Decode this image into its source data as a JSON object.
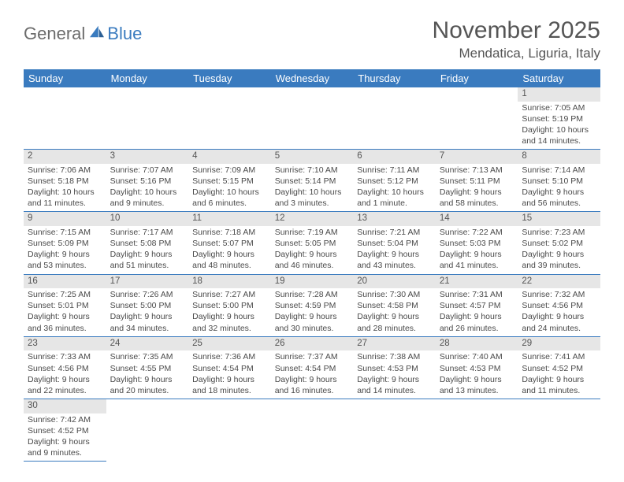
{
  "logo": {
    "part1": "General",
    "part2": "Blue"
  },
  "title": "November 2025",
  "location": "Mendatica, Liguria, Italy",
  "colors": {
    "header_bg": "#3a7bbf",
    "header_fg": "#ffffff",
    "daynum_bg": "#e6e6e6",
    "border": "#3a7bbf",
    "text": "#4a4a4a"
  },
  "weekdays": [
    "Sunday",
    "Monday",
    "Tuesday",
    "Wednesday",
    "Thursday",
    "Friday",
    "Saturday"
  ],
  "weeks": [
    [
      null,
      null,
      null,
      null,
      null,
      null,
      {
        "n": "1",
        "sr": "Sunrise: 7:05 AM",
        "ss": "Sunset: 5:19 PM",
        "dl": "Daylight: 10 hours and 14 minutes."
      }
    ],
    [
      {
        "n": "2",
        "sr": "Sunrise: 7:06 AM",
        "ss": "Sunset: 5:18 PM",
        "dl": "Daylight: 10 hours and 11 minutes."
      },
      {
        "n": "3",
        "sr": "Sunrise: 7:07 AM",
        "ss": "Sunset: 5:16 PM",
        "dl": "Daylight: 10 hours and 9 minutes."
      },
      {
        "n": "4",
        "sr": "Sunrise: 7:09 AM",
        "ss": "Sunset: 5:15 PM",
        "dl": "Daylight: 10 hours and 6 minutes."
      },
      {
        "n": "5",
        "sr": "Sunrise: 7:10 AM",
        "ss": "Sunset: 5:14 PM",
        "dl": "Daylight: 10 hours and 3 minutes."
      },
      {
        "n": "6",
        "sr": "Sunrise: 7:11 AM",
        "ss": "Sunset: 5:12 PM",
        "dl": "Daylight: 10 hours and 1 minute."
      },
      {
        "n": "7",
        "sr": "Sunrise: 7:13 AM",
        "ss": "Sunset: 5:11 PM",
        "dl": "Daylight: 9 hours and 58 minutes."
      },
      {
        "n": "8",
        "sr": "Sunrise: 7:14 AM",
        "ss": "Sunset: 5:10 PM",
        "dl": "Daylight: 9 hours and 56 minutes."
      }
    ],
    [
      {
        "n": "9",
        "sr": "Sunrise: 7:15 AM",
        "ss": "Sunset: 5:09 PM",
        "dl": "Daylight: 9 hours and 53 minutes."
      },
      {
        "n": "10",
        "sr": "Sunrise: 7:17 AM",
        "ss": "Sunset: 5:08 PM",
        "dl": "Daylight: 9 hours and 51 minutes."
      },
      {
        "n": "11",
        "sr": "Sunrise: 7:18 AM",
        "ss": "Sunset: 5:07 PM",
        "dl": "Daylight: 9 hours and 48 minutes."
      },
      {
        "n": "12",
        "sr": "Sunrise: 7:19 AM",
        "ss": "Sunset: 5:05 PM",
        "dl": "Daylight: 9 hours and 46 minutes."
      },
      {
        "n": "13",
        "sr": "Sunrise: 7:21 AM",
        "ss": "Sunset: 5:04 PM",
        "dl": "Daylight: 9 hours and 43 minutes."
      },
      {
        "n": "14",
        "sr": "Sunrise: 7:22 AM",
        "ss": "Sunset: 5:03 PM",
        "dl": "Daylight: 9 hours and 41 minutes."
      },
      {
        "n": "15",
        "sr": "Sunrise: 7:23 AM",
        "ss": "Sunset: 5:02 PM",
        "dl": "Daylight: 9 hours and 39 minutes."
      }
    ],
    [
      {
        "n": "16",
        "sr": "Sunrise: 7:25 AM",
        "ss": "Sunset: 5:01 PM",
        "dl": "Daylight: 9 hours and 36 minutes."
      },
      {
        "n": "17",
        "sr": "Sunrise: 7:26 AM",
        "ss": "Sunset: 5:00 PM",
        "dl": "Daylight: 9 hours and 34 minutes."
      },
      {
        "n": "18",
        "sr": "Sunrise: 7:27 AM",
        "ss": "Sunset: 5:00 PM",
        "dl": "Daylight: 9 hours and 32 minutes."
      },
      {
        "n": "19",
        "sr": "Sunrise: 7:28 AM",
        "ss": "Sunset: 4:59 PM",
        "dl": "Daylight: 9 hours and 30 minutes."
      },
      {
        "n": "20",
        "sr": "Sunrise: 7:30 AM",
        "ss": "Sunset: 4:58 PM",
        "dl": "Daylight: 9 hours and 28 minutes."
      },
      {
        "n": "21",
        "sr": "Sunrise: 7:31 AM",
        "ss": "Sunset: 4:57 PM",
        "dl": "Daylight: 9 hours and 26 minutes."
      },
      {
        "n": "22",
        "sr": "Sunrise: 7:32 AM",
        "ss": "Sunset: 4:56 PM",
        "dl": "Daylight: 9 hours and 24 minutes."
      }
    ],
    [
      {
        "n": "23",
        "sr": "Sunrise: 7:33 AM",
        "ss": "Sunset: 4:56 PM",
        "dl": "Daylight: 9 hours and 22 minutes."
      },
      {
        "n": "24",
        "sr": "Sunrise: 7:35 AM",
        "ss": "Sunset: 4:55 PM",
        "dl": "Daylight: 9 hours and 20 minutes."
      },
      {
        "n": "25",
        "sr": "Sunrise: 7:36 AM",
        "ss": "Sunset: 4:54 PM",
        "dl": "Daylight: 9 hours and 18 minutes."
      },
      {
        "n": "26",
        "sr": "Sunrise: 7:37 AM",
        "ss": "Sunset: 4:54 PM",
        "dl": "Daylight: 9 hours and 16 minutes."
      },
      {
        "n": "27",
        "sr": "Sunrise: 7:38 AM",
        "ss": "Sunset: 4:53 PM",
        "dl": "Daylight: 9 hours and 14 minutes."
      },
      {
        "n": "28",
        "sr": "Sunrise: 7:40 AM",
        "ss": "Sunset: 4:53 PM",
        "dl": "Daylight: 9 hours and 13 minutes."
      },
      {
        "n": "29",
        "sr": "Sunrise: 7:41 AM",
        "ss": "Sunset: 4:52 PM",
        "dl": "Daylight: 9 hours and 11 minutes."
      }
    ],
    [
      {
        "n": "30",
        "sr": "Sunrise: 7:42 AM",
        "ss": "Sunset: 4:52 PM",
        "dl": "Daylight: 9 hours and 9 minutes."
      },
      null,
      null,
      null,
      null,
      null,
      null
    ]
  ]
}
